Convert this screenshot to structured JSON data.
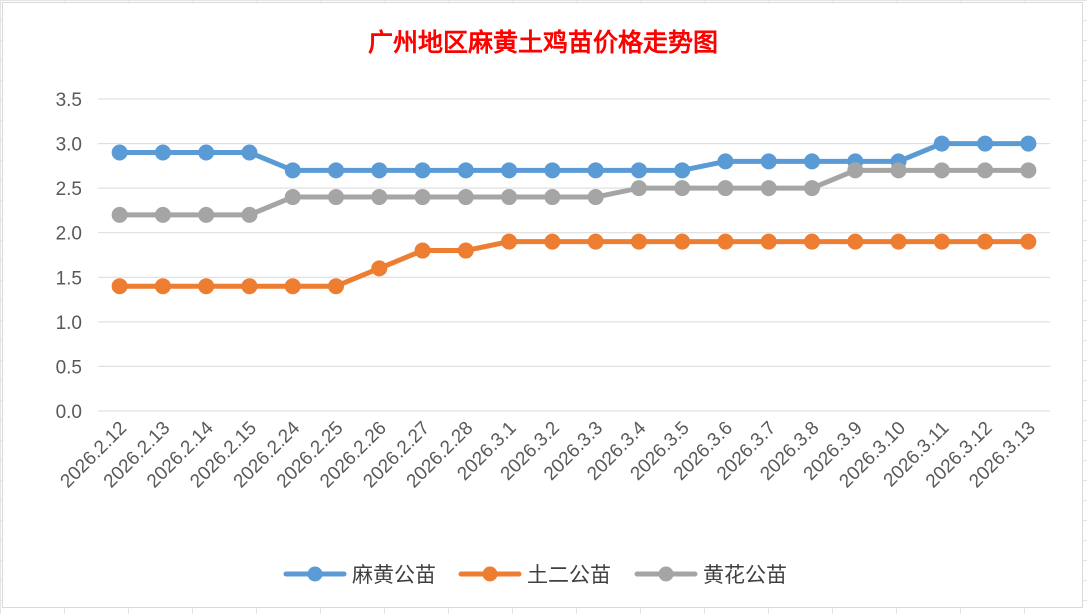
{
  "chart_data": {
    "type": "line",
    "title": "广州地区麻黄土鸡苗价格走势图",
    "xlabel": "",
    "ylabel": "",
    "ylim": [
      0,
      3.5
    ],
    "yticks": [
      "0.0",
      "0.5",
      "1.0",
      "1.5",
      "2.0",
      "2.5",
      "3.0",
      "3.5"
    ],
    "grid": true,
    "legend_position": "bottom",
    "categories": [
      "2026.2.12",
      "2026.2.13",
      "2026.2.14",
      "2026.2.15",
      "2026.2.24",
      "2026.2.25",
      "2026.2.26",
      "2026.2.27",
      "2026.2.28",
      "2026.3.1",
      "2026.3.2",
      "2026.3.3",
      "2026.3.4",
      "2026.3.5",
      "2026.3.6",
      "2026.3.7",
      "2026.3.8",
      "2026.3.9",
      "2026.3.10",
      "2026.3.11",
      "2026.3.12",
      "2026.3.13"
    ],
    "series": [
      {
        "name": "麻黄公苗",
        "color": "#5b9bd5",
        "values": [
          2.9,
          2.9,
          2.9,
          2.9,
          2.7,
          2.7,
          2.7,
          2.7,
          2.7,
          2.7,
          2.7,
          2.7,
          2.7,
          2.7,
          2.8,
          2.8,
          2.8,
          2.8,
          2.8,
          3.0,
          3.0,
          3.0
        ]
      },
      {
        "name": "土二公苗",
        "color": "#ed7d31",
        "values": [
          1.4,
          1.4,
          1.4,
          1.4,
          1.4,
          1.4,
          1.6,
          1.8,
          1.8,
          1.9,
          1.9,
          1.9,
          1.9,
          1.9,
          1.9,
          1.9,
          1.9,
          1.9,
          1.9,
          1.9,
          1.9,
          1.9
        ]
      },
      {
        "name": "黄花公苗",
        "color": "#a5a5a5",
        "values": [
          2.2,
          2.2,
          2.2,
          2.2,
          2.4,
          2.4,
          2.4,
          2.4,
          2.4,
          2.4,
          2.4,
          2.4,
          2.5,
          2.5,
          2.5,
          2.5,
          2.5,
          2.7,
          2.7,
          2.7,
          2.7,
          2.7
        ]
      }
    ]
  }
}
